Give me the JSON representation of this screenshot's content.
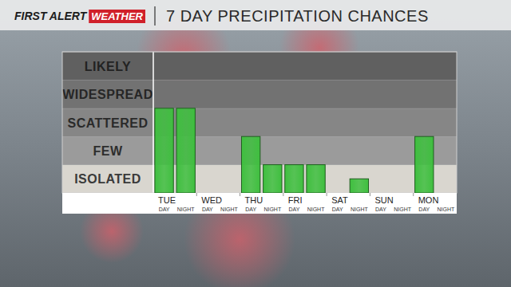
{
  "header": {
    "brand": "FIRST ALERT",
    "brand_tag": "WEATHER"
  },
  "chart_data": {
    "type": "bar",
    "title": "7 DAY PRECIPITATION CHANCES",
    "categories": [
      "DAY",
      "NIGHT",
      "DAY",
      "NIGHT",
      "DAY",
      "NIGHT",
      "DAY",
      "NIGHT",
      "DAY",
      "NIGHT",
      "DAY",
      "NIGHT",
      "DAY",
      "NIGHT"
    ],
    "groups": [
      "TUE",
      "WED",
      "THU",
      "FRI",
      "SAT",
      "SUN",
      "MON"
    ],
    "values": [
      3,
      3,
      0,
      0,
      2,
      1,
      1,
      1,
      0,
      0.5,
      0,
      0,
      2,
      0
    ],
    "color": "#3fbf3f",
    "ylim": [
      0,
      5
    ],
    "yticks": [
      {
        "value": 0.5,
        "label": "ISOLATED"
      },
      {
        "value": 1.5,
        "label": "FEW"
      },
      {
        "value": 2.5,
        "label": "SCATTERED"
      },
      {
        "value": 3.5,
        "label": "WIDESPREAD"
      },
      {
        "value": 4.5,
        "label": "LIKELY"
      }
    ],
    "grid": true
  }
}
